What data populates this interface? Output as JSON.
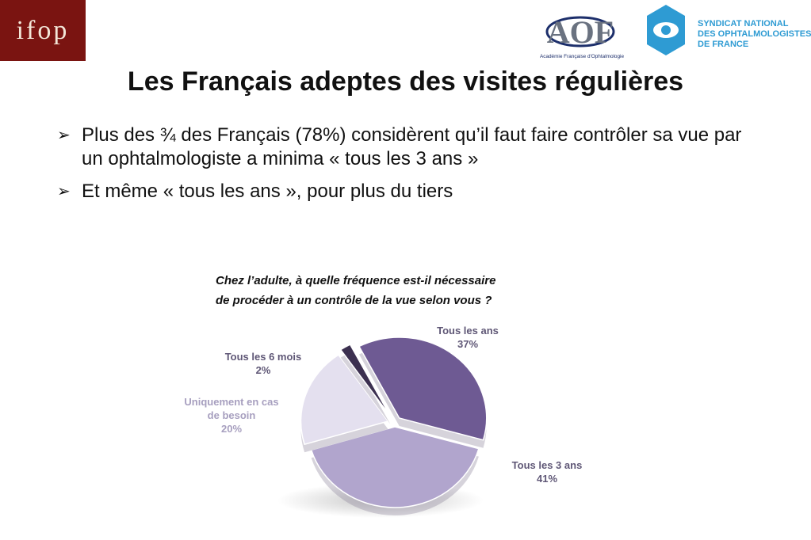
{
  "header": {
    "ifop_logo_text": "ifop",
    "aof_logo_letters": "AOF",
    "aof_caption": "Académie Française d'Ophtalmologie",
    "snof_lines": [
      "SYNDICAT NATIONAL",
      "DES OPHTALMOLOGISTES",
      "DE FRANCE"
    ]
  },
  "title": "Les Français adeptes des visites régulières",
  "bullets": [
    {
      "marker": "➢",
      "text": "Plus des ¾ des Français (78%) considèrent qu’il faut faire contrôler sa vue par un ophtalmologiste a minima « tous les 3 ans »"
    },
    {
      "marker": "➢",
      "text": "Et même « tous les ans », pour plus du tiers"
    }
  ],
  "question": {
    "line1": "Chez l’adulte, à quelle fréquence est-il nécessaire",
    "line2": "de procéder à un contrôle de la vue selon vous ?"
  },
  "colors": {
    "tous_les_ans": "#6e5a93",
    "tous_les_3_ans": "#b1a5cd",
    "uniquement": "#e4e0ef",
    "tous_les_6_mois": "#3c3050",
    "label_dark": "#5f5776",
    "label_light": "#a79fbf",
    "snof_blue": "#2e9bd3",
    "ifop_red": "#7a1411"
  },
  "chart_data": {
    "type": "pie",
    "title": "",
    "categories": [
      "Tous les ans",
      "Tous les 3 ans",
      "Uniquement en cas de besoin",
      "Tous les 6 mois"
    ],
    "values": [
      37,
      41,
      20,
      2
    ],
    "value_labels": [
      "37%",
      "41%",
      "20%",
      "2%"
    ],
    "label_lines": [
      [
        "Tous les ans",
        "37%"
      ],
      [
        "Tous les 3 ans",
        "41%"
      ],
      [
        "Uniquement en cas",
        "de besoin",
        "20%"
      ],
      [
        "Tous les 6 mois",
        "2%"
      ]
    ],
    "exploded": true,
    "style": "3d"
  }
}
